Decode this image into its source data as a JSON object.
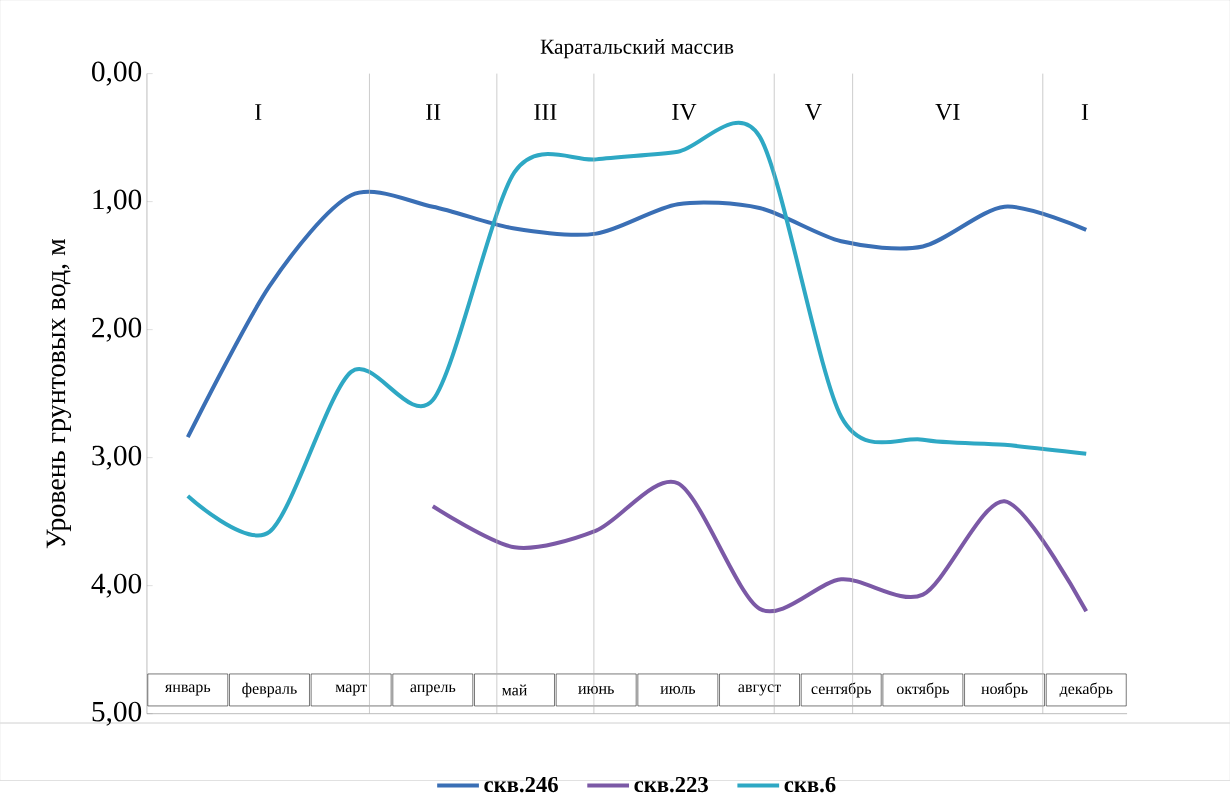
{
  "chart_data": {
    "type": "line",
    "title": "Каратальский массив",
    "ylabel": "Уровень грунтовых вод, м",
    "categories": [
      "январь",
      "февраль",
      "март",
      "апрель",
      "май",
      "июнь",
      "июль",
      "август",
      "сентябрь",
      "октябрь",
      "ноябрь",
      "декабрь"
    ],
    "series": [
      {
        "name": "скв.246",
        "color": "#3a6fb5",
        "values": [
          2.84,
          1.66,
          0.95,
          1.04,
          1.21,
          1.25,
          1.02,
          1.05,
          1.31,
          1.35,
          1.04,
          1.22
        ]
      },
      {
        "name": "скв.223",
        "color": "#7b59a6",
        "values": [
          null,
          null,
          null,
          3.38,
          3.7,
          3.57,
          3.2,
          4.18,
          3.95,
          4.07,
          3.34,
          4.2
        ]
      },
      {
        "name": "скв.6",
        "color": "#2ea8c4",
        "values": [
          3.3,
          3.58,
          2.33,
          2.55,
          0.77,
          0.67,
          0.61,
          0.49,
          2.68,
          2.86,
          2.9,
          2.97
        ]
      }
    ],
    "ylim": [
      5,
      0
    ],
    "yticks": [
      {
        "value": 0,
        "label": "0,00"
      },
      {
        "value": 1,
        "label": "1,00"
      },
      {
        "value": 2,
        "label": "2,00"
      },
      {
        "value": 3,
        "label": "3,00"
      },
      {
        "value": 4,
        "label": "4,00"
      },
      {
        "value": 5,
        "label": "5,00"
      }
    ],
    "annotations": [
      "I",
      "II",
      "III",
      "IV",
      "V",
      "VI",
      "I"
    ],
    "legend": "bottom",
    "marker": "none",
    "line_style": "solid"
  }
}
